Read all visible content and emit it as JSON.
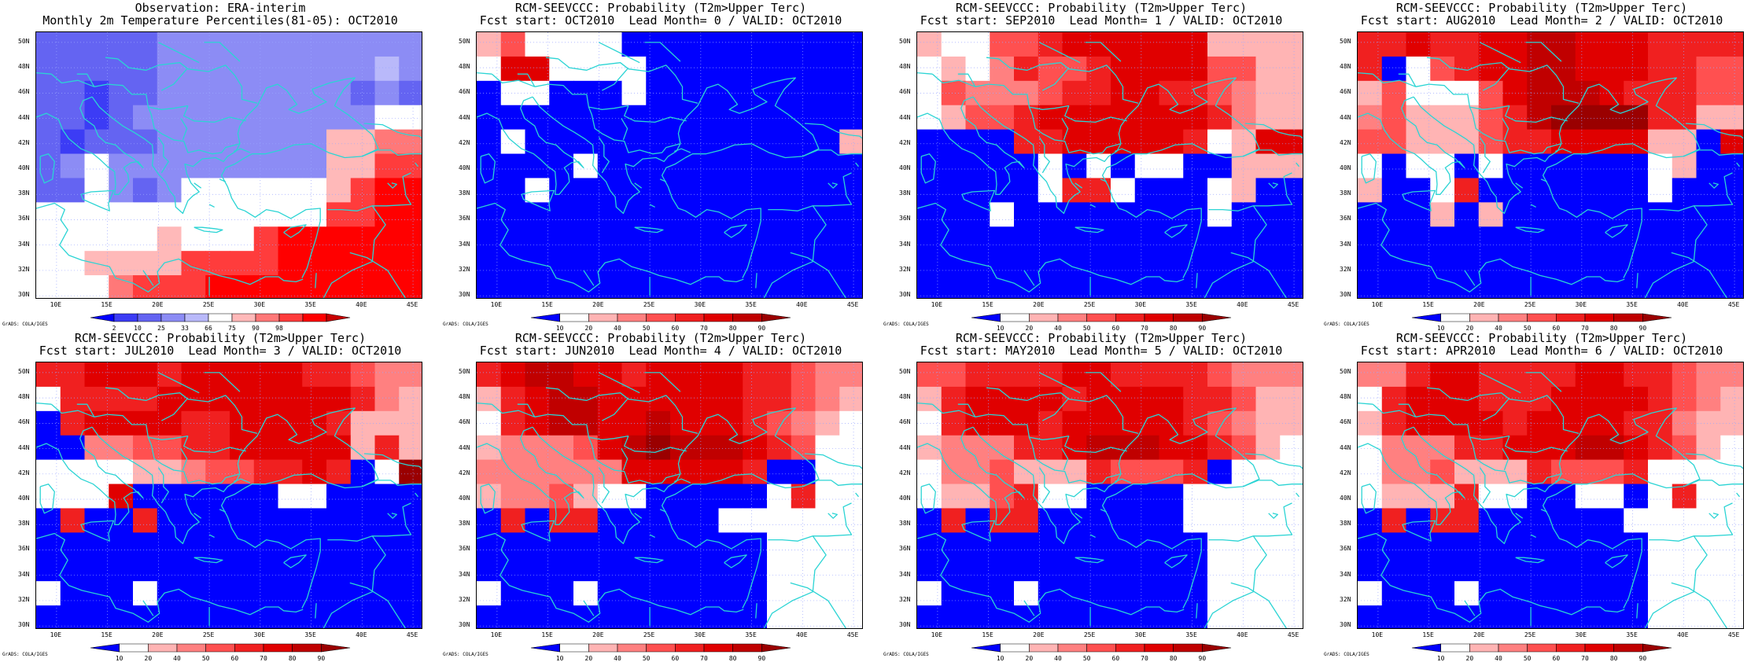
{
  "colors": {
    "white": "#ffffff",
    "coast": "#2bd4d4",
    "grid": "#9aa6ff",
    "obs": [
      "#0000ff",
      "#3c3cf5",
      "#6464f2",
      "#8c8cf5",
      "#b9b9fa",
      "#ffffff",
      "#ffb9b9",
      "#ff7878",
      "#ff3c3c",
      "#ff0000",
      "#c80000"
    ],
    "prob": [
      "#0000ff",
      "#ffffff",
      "#ffb4b4",
      "#ff8080",
      "#ff5050",
      "#f02020",
      "#e00000",
      "#c00000",
      "#9a0000"
    ]
  },
  "legend_obs": [
    "2",
    "10",
    "25",
    "33",
    "66",
    "75",
    "90",
    "98"
  ],
  "legend_prob": [
    "10",
    "20",
    "40",
    "50",
    "60",
    "70",
    "80",
    "90"
  ],
  "lat_labels": [
    "50N",
    "48N",
    "46N",
    "44N",
    "42N",
    "40N",
    "38N",
    "36N",
    "34N",
    "32N",
    "30N"
  ],
  "lon_labels": [
    "10E",
    "15E",
    "20E",
    "25E",
    "30E",
    "35E",
    "40E",
    "45E"
  ],
  "credit": "GrADS: COLA/IGES",
  "panels": [
    {
      "title1": "Observation: ERA-interim",
      "title2": "Monthly 2m Temperature Percentiles(81-05): OCT2010",
      "legend_type": "obs",
      "grid": [
        "2222233333333333",
        "2222233333333343",
        "2212233333333232",
        "2212333333333355",
        "2122233333336677",
        "2353333333336688",
        "2253235555556899",
        "5555555555558899",
        "5555565558999999",
        "5566668888999999",
        "5557888999999999"
      ]
    },
    {
      "title1": "RCM-SEEVCCC: Probability (T2m>Upper Terc)",
      "title2": "Fcst start: OCT2010  Lead Month= 0 / VALID: OCT2010",
      "legend_type": "prob",
      "grid": [
        "2411110000000000",
        "1661111000000000",
        "0110001000000000",
        "0000000000000000",
        "0100000000000002",
        "0000100000000000",
        "0010000000000000",
        "0000000000000000",
        "0000000000000000",
        "0000000000000000",
        "0000000000000000"
      ]
    },
    {
      "title1": "RCM-SEEVCCC: Probability (T2m>Upper Terc)",
      "title2": "Fcst start: SEP2010  Lead Month= 1 / VALID: OCT2010",
      "legend_type": "prob",
      "grid": [
        "2114456666662222",
        "1213544566664422",
        "1433345566554322",
        "1244566666665322",
        "0000556666651266",
        "0000010101100222",
        "0000015510001200",
        "0001000000001000",
        "0000000000000000",
        "0000000000000000",
        "0000000000000000"
      ]
    },
    {
      "title1": "RCM-SEEVCCC: Probability (T2m>Upper Terc)",
      "title2": "Fcst start: AUG2010  Lead Month= 2 / VALID: OCT2010",
      "legend_type": "prob",
      "grid": [
        "5565566776665555",
        "5014566776665544",
        "2411146777655544",
        "3422245788885522",
        "4422245566662206",
        "1011010000001200",
        "2001500000001000",
        "0002020000000000",
        "0000000000000000",
        "0000000000000000",
        "0000000000000000"
      ]
    },
    {
      "title1": "RCM-SEEVCCC: Probability (T2m>Upper Terc)",
      "title2": "Fcst start: JUL2010  Lead Month= 3 / VALID: OCT2010",
      "legend_type": "prob",
      "grid": [
        "5566656666655433",
        "1555566666666532",
        "0566665566665222",
        "0033445566666252",
        "1111223445565018",
        "1116000000110000",
        "0500500000000000",
        "0000000000000000",
        "0000000000000000",
        "1000100000000000",
        "0000000000000000"
      ]
    },
    {
      "title1": "RCM-SEEVCCC: Probability (T2m>Upper Terc)",
      "title2": "Fcst start: JUN2010  Lead Month= 4 / VALID: OCT2010",
      "legend_type": "prob",
      "grid": [
        "5677665666655433",
        "2567766666655432",
        "1567766766654321",
        "2333467877765411",
        "3333336666650011",
        "2334211000001511",
        "0505500000111111",
        "0000000000001111",
        "0000000000001111",
        "1000100000001111",
        "0000000000001111"
      ]
    },
    {
      "title1": "RCM-SEEVCCC: Probability (T2m>Upper Terc)",
      "title2": "Fcst start: MAY2010  Lead Month= 5 / VALID: OCT2010",
      "legend_type": "prob",
      "grid": [
        "4455556655554333",
        "2566665666655422",
        "1566656666654322",
        "2333556777665421",
        "1334222544450111",
        "1224511000011111",
        "0505500000011111",
        "0000000000001111",
        "0000000000001111",
        "1000100000001111",
        "0000000000001111"
      ]
    },
    {
      "title1": "RCM-SEEVCCC: Probability (T2m>Upper Terc)",
      "title2": "Fcst start: APR2010  Lead Month= 6 / VALID: OCT2010",
      "legend_type": "prob",
      "grid": [
        "3356655556655433",
        "1566655566665432",
        "2566665666655322",
        "1333556667765421",
        "1334222544451111",
        "1222511001101511",
        "0505500000011111",
        "0000000000001111",
        "0000000000001111",
        "1000100000001111",
        "0000000000001111"
      ]
    }
  ]
}
